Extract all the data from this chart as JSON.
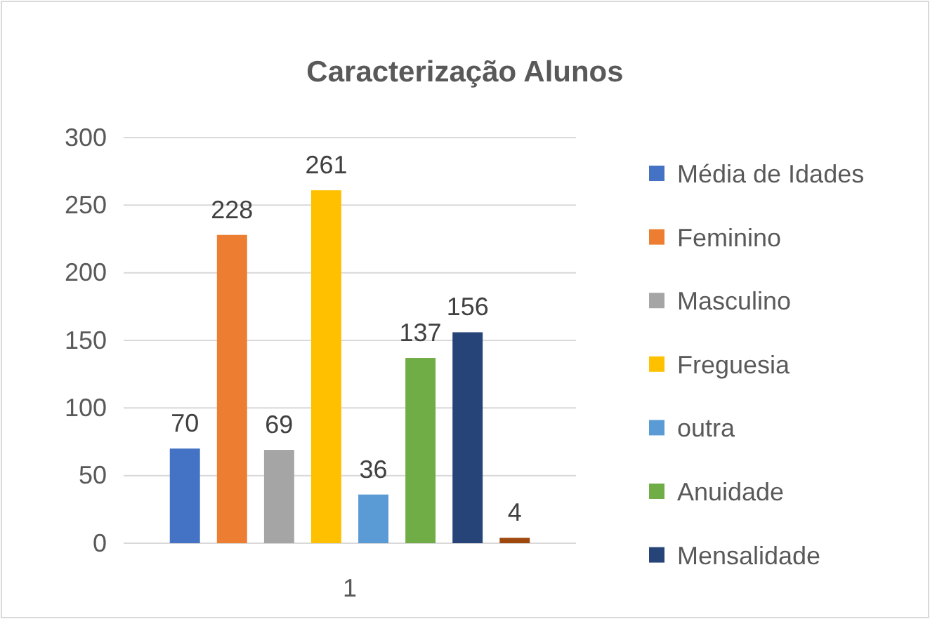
{
  "chart_data": {
    "type": "bar",
    "title": "Caracterização Alunos",
    "xlabel": "1",
    "categories": [
      null,
      null,
      null,
      null,
      null,
      null,
      null,
      null
    ],
    "series": [
      {
        "name": "Média de Idades",
        "color": "#4472c4",
        "values": [
          70,
          null,
          null,
          null,
          null,
          null,
          null,
          null
        ]
      },
      {
        "name": "Feminino",
        "color": "#ed7d31",
        "values": [
          null,
          228,
          null,
          null,
          null,
          null,
          null,
          null
        ]
      },
      {
        "name": "Masculino",
        "color": "#a5a5a5",
        "values": [
          null,
          null,
          69,
          null,
          null,
          null,
          null,
          null
        ]
      },
      {
        "name": "Freguesia",
        "color": "#ffc000",
        "values": [
          null,
          null,
          null,
          261,
          null,
          null,
          null,
          null
        ]
      },
      {
        "name": "outra",
        "color": "#5b9bd5",
        "values": [
          null,
          null,
          null,
          null,
          36,
          null,
          null,
          null
        ]
      },
      {
        "name": "Anuidade",
        "color": "#70ad47",
        "values": [
          null,
          null,
          null,
          null,
          null,
          137,
          null,
          null
        ]
      },
      {
        "name": "Mensalidade",
        "color": "#264478",
        "values": [
          null,
          null,
          null,
          null,
          null,
          null,
          156,
          null
        ]
      },
      {
        "color": "#9e480e",
        "values": [
          null,
          null,
          null,
          null,
          null,
          null,
          null,
          4
        ]
      }
    ],
    "ylim": [
      0,
      300
    ],
    "yticks": [
      0,
      50,
      100,
      150,
      200,
      250,
      300
    ],
    "stacked": true,
    "grid": "y",
    "legend": "right",
    "data_labels": true
  }
}
